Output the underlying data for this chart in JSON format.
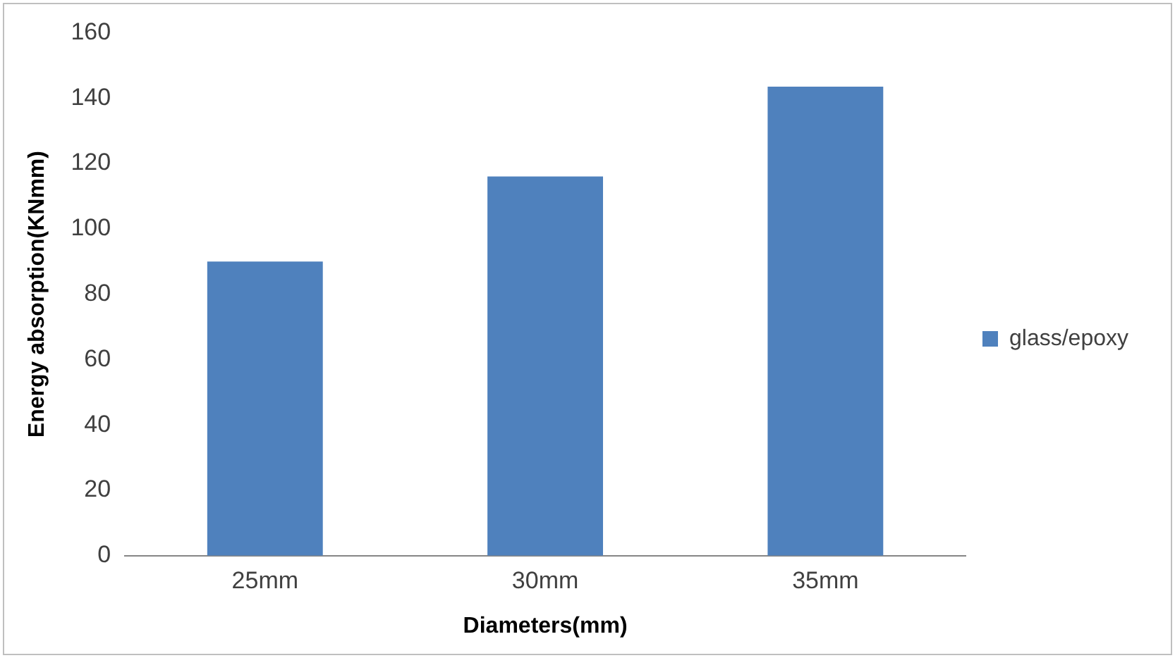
{
  "chart_data": {
    "type": "bar",
    "xlabel": "Diameters(mm)",
    "ylabel": "Energy absorption(KNmm)",
    "categories": [
      "25mm",
      "30mm",
      "35mm"
    ],
    "series": [
      {
        "name": "glass/epoxy",
        "color": "#4f81bd",
        "values": [
          90,
          116,
          143.5
        ]
      }
    ],
    "ylim": [
      0,
      160
    ],
    "yticks": [
      0,
      20,
      40,
      60,
      80,
      100,
      120,
      140,
      160
    ],
    "grid": false,
    "legend": "right"
  }
}
